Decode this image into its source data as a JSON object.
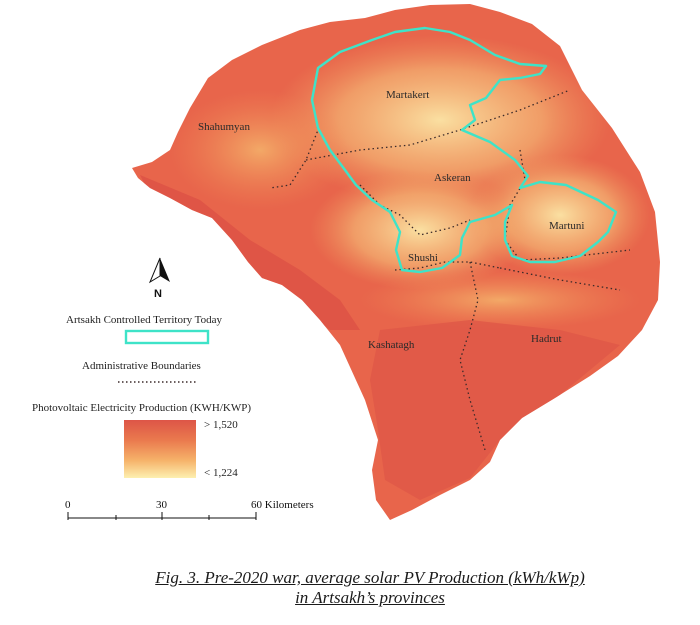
{
  "regions": {
    "shahumyan": "Shahumyan",
    "martakert": "Martakert",
    "askeran": "Askeran",
    "martuni": "Martuni",
    "shushi": "Shushi",
    "kashatagh": "Kashatagh",
    "hadrut": "Hadrut"
  },
  "north_arrow": {
    "label": "N"
  },
  "legend": {
    "controlled_territory": "Artsakh Controlled Territory Today",
    "admin_boundaries": "Administrative Boundaries",
    "pv_title": "Photovoltaic Electricity Production (KWH/KWP)",
    "pv_max": "> 1,520",
    "pv_min": "< 1,224"
  },
  "scale_bar": {
    "tick_0": "0",
    "tick_30": "30",
    "tick_60": "60 Kilometers"
  },
  "caption": {
    "line1": "Fig. 3. Pre-2020 war, average solar PV Production (kWh/kWp)",
    "line2": "in Artsakh’s provinces"
  },
  "colors": {
    "controlled_outline": "#3ee3c8",
    "high": "#e05a48",
    "low": "#fbe9a8",
    "boundary": "#3b2a2a"
  }
}
